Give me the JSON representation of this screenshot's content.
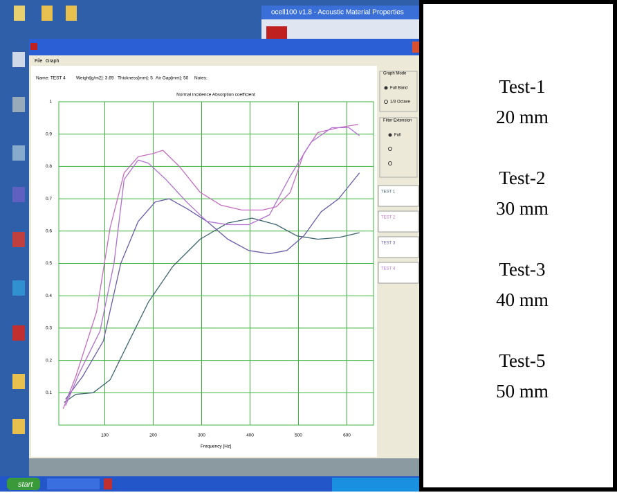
{
  "desktop": {
    "background_window_title": "ocell100 v1.8 - Acoustic Material Properties"
  },
  "window": {
    "menu": [
      "File",
      "Graph"
    ],
    "info": [
      "Name: TEST 4",
      "Weight[g/m2]: 3.69",
      "Thickness[mm]: 5",
      "Air Gap[mm]: 50",
      "Notes:"
    ],
    "graph_mode": {
      "title": "Graph Mode",
      "options": [
        "Full Band",
        "1/3 Octave"
      ]
    },
    "filter_extension": {
      "title": "Filter Extension",
      "options": [
        "Full"
      ]
    }
  },
  "chart_data": {
    "type": "line",
    "title": "Normal incidence Absorption coefficient",
    "x_label": "Frequency [Hz]",
    "xlim": [
      5,
      655
    ],
    "ylim": [
      0,
      1
    ],
    "xticks": [
      100,
      200,
      300,
      400,
      500,
      600
    ],
    "yticks": [
      0.1,
      0.2,
      0.3,
      0.4,
      0.5,
      0.6,
      0.7,
      0.8,
      0.9,
      1
    ],
    "grid": true,
    "series": [
      {
        "name": "TEST 1",
        "color": "#3f6470",
        "x": [
          16,
          40,
          76,
          111,
          147,
          190,
          240,
          297,
          354,
          404,
          454,
          497,
          540,
          583,
          626
        ],
        "values": [
          0.07,
          0.095,
          0.1,
          0.14,
          0.25,
          0.38,
          0.49,
          0.575,
          0.625,
          0.64,
          0.62,
          0.585,
          0.575,
          0.58,
          0.595
        ]
      },
      {
        "name": "TEST 2",
        "color": "#c46cc0",
        "x": [
          14,
          40,
          83,
          111,
          140,
          169,
          200,
          220,
          254,
          297,
          340,
          383,
          426,
          454,
          483,
          511,
          540,
          583,
          623
        ],
        "values": [
          0.05,
          0.15,
          0.35,
          0.61,
          0.78,
          0.83,
          0.84,
          0.85,
          0.8,
          0.72,
          0.68,
          0.665,
          0.665,
          0.675,
          0.72,
          0.84,
          0.905,
          0.92,
          0.93
        ]
      },
      {
        "name": "TEST 3",
        "color": "#6a5aa8",
        "x": [
          19,
          54,
          97,
          133,
          169,
          204,
          233,
          269,
          311,
          354,
          397,
          440,
          476,
          511,
          547,
          583,
          626
        ],
        "values": [
          0.08,
          0.15,
          0.26,
          0.5,
          0.63,
          0.69,
          0.7,
          0.67,
          0.63,
          0.575,
          0.54,
          0.53,
          0.54,
          0.585,
          0.66,
          0.7,
          0.78
        ]
      },
      {
        "name": "TEST 4",
        "color": "#b070d0",
        "x": [
          19,
          47,
          90,
          119,
          140,
          169,
          190,
          226,
          269,
          311,
          354,
          397,
          440,
          483,
          526,
          569,
          604,
          626
        ],
        "values": [
          0.06,
          0.16,
          0.29,
          0.5,
          0.76,
          0.82,
          0.81,
          0.76,
          0.69,
          0.63,
          0.62,
          0.62,
          0.65,
          0.77,
          0.875,
          0.92,
          0.92,
          0.895
        ]
      }
    ]
  },
  "taskbar": {
    "start": "start"
  },
  "side_panel": {
    "entries": [
      {
        "name": "Test-1",
        "thickness": "20 mm"
      },
      {
        "name": "Test-2",
        "thickness": "30 mm"
      },
      {
        "name": "Test-3",
        "thickness": "40 mm"
      },
      {
        "name": "Test-5",
        "thickness": "50 mm"
      }
    ]
  }
}
